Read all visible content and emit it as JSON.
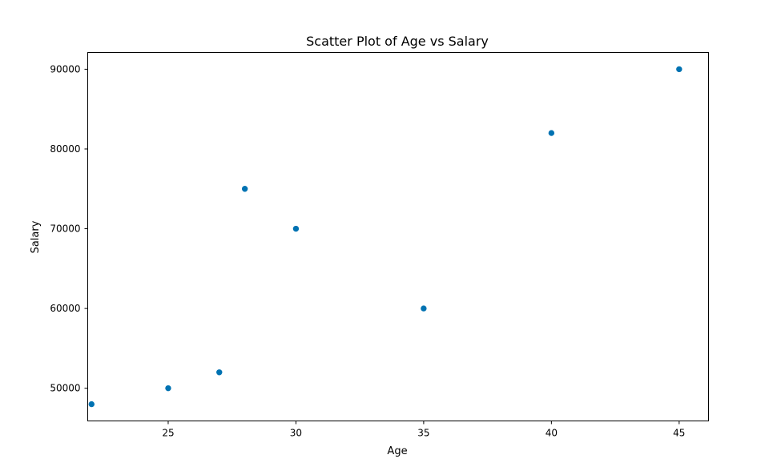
{
  "chart_data": {
    "type": "scatter",
    "title": "Scatter Plot of Age vs Salary",
    "xlabel": "Age",
    "ylabel": "Salary",
    "xlim": [
      21.85,
      46.15
    ],
    "ylim": [
      45900,
      92100
    ],
    "x_ticks": [
      25,
      30,
      35,
      40,
      45
    ],
    "y_ticks": [
      50000,
      60000,
      70000,
      80000,
      90000
    ],
    "grid": false,
    "point_color": "#0072b2",
    "series": [
      {
        "points": [
          {
            "x": 22,
            "y": 48000
          },
          {
            "x": 25,
            "y": 50000
          },
          {
            "x": 27,
            "y": 52000
          },
          {
            "x": 28,
            "y": 75000
          },
          {
            "x": 30,
            "y": 70000
          },
          {
            "x": 35,
            "y": 60000
          },
          {
            "x": 40,
            "y": 82000
          },
          {
            "x": 45,
            "y": 90000
          }
        ]
      }
    ]
  }
}
